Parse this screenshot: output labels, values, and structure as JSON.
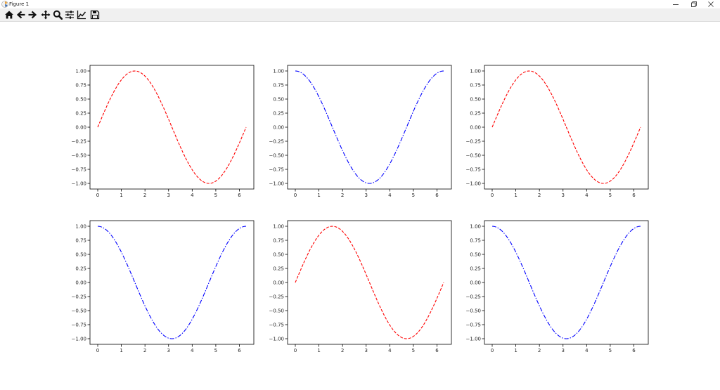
{
  "window": {
    "title": "Figure 1",
    "controls": [
      "minimize",
      "restore",
      "close"
    ]
  },
  "toolbar": {
    "buttons": [
      {
        "name": "home",
        "icon": "home-icon"
      },
      {
        "name": "back",
        "icon": "arrow-left-icon"
      },
      {
        "name": "forward",
        "icon": "arrow-right-icon"
      },
      {
        "name": "pan",
        "icon": "move-icon"
      },
      {
        "name": "zoom",
        "icon": "magnifier-icon"
      },
      {
        "name": "configure-subplots",
        "icon": "sliders-icon"
      },
      {
        "name": "edit-axes",
        "icon": "line-chart-icon"
      },
      {
        "name": "save",
        "icon": "floppy-disk-icon"
      }
    ]
  },
  "colors": {
    "sin": "#ff0000",
    "cos": "#0000ff",
    "toolbar_bg": "#f0f0f0"
  },
  "chart_data": [
    {
      "type": "line",
      "row": 1,
      "col": 1,
      "function": "sin",
      "x_range": [
        0,
        6.283
      ],
      "ylim": [
        -1.1,
        1.1
      ],
      "xticks": [
        "0",
        "1",
        "2",
        "3",
        "4",
        "5",
        "6"
      ],
      "yticks": [
        "1.00",
        "0.75",
        "0.50",
        "0.25",
        "0.00",
        "−0.25",
        "−0.50",
        "−0.75",
        "−1.00"
      ],
      "series": [
        {
          "color": "#ff0000",
          "linestyle": "dashed"
        }
      ]
    },
    {
      "type": "line",
      "row": 1,
      "col": 2,
      "function": "cos",
      "x_range": [
        0,
        6.283
      ],
      "ylim": [
        -1.1,
        1.1
      ],
      "xticks": [
        "0",
        "1",
        "2",
        "3",
        "4",
        "5",
        "6"
      ],
      "yticks": [
        "1.00",
        "0.75",
        "0.50",
        "0.25",
        "0.00",
        "−0.25",
        "−0.50",
        "−0.75",
        "−1.00"
      ],
      "series": [
        {
          "color": "#0000ff",
          "linestyle": "dashdot"
        }
      ]
    },
    {
      "type": "line",
      "row": 1,
      "col": 3,
      "function": "sin",
      "x_range": [
        0,
        6.283
      ],
      "ylim": [
        -1.1,
        1.1
      ],
      "xticks": [
        "0",
        "1",
        "2",
        "3",
        "4",
        "5",
        "6"
      ],
      "yticks": [
        "1.00",
        "0.75",
        "0.50",
        "0.25",
        "0.00",
        "−0.25",
        "−0.50",
        "−0.75",
        "−1.00"
      ],
      "series": [
        {
          "color": "#ff0000",
          "linestyle": "dashed"
        }
      ]
    },
    {
      "type": "line",
      "row": 2,
      "col": 1,
      "function": "cos",
      "x_range": [
        0,
        6.283
      ],
      "ylim": [
        -1.1,
        1.1
      ],
      "xticks": [
        "0",
        "1",
        "2",
        "3",
        "4",
        "5",
        "6"
      ],
      "yticks": [
        "1.00",
        "0.75",
        "0.50",
        "0.25",
        "0.00",
        "−0.25",
        "−0.50",
        "−0.75",
        "−1.00"
      ],
      "series": [
        {
          "color": "#0000ff",
          "linestyle": "dashdot"
        }
      ]
    },
    {
      "type": "line",
      "row": 2,
      "col": 2,
      "function": "sin",
      "x_range": [
        0,
        6.283
      ],
      "ylim": [
        -1.1,
        1.1
      ],
      "xticks": [
        "0",
        "1",
        "2",
        "3",
        "4",
        "5",
        "6"
      ],
      "yticks": [
        "1.00",
        "0.75",
        "0.50",
        "0.25",
        "0.00",
        "−0.25",
        "−0.50",
        "−0.75",
        "−1.00"
      ],
      "series": [
        {
          "color": "#ff0000",
          "linestyle": "dashed"
        }
      ]
    },
    {
      "type": "line",
      "row": 2,
      "col": 3,
      "function": "cos",
      "x_range": [
        0,
        6.283
      ],
      "ylim": [
        -1.1,
        1.1
      ],
      "xticks": [
        "0",
        "1",
        "2",
        "3",
        "4",
        "5",
        "6"
      ],
      "yticks": [
        "1.00",
        "0.75",
        "0.50",
        "0.25",
        "0.00",
        "−0.25",
        "−0.50",
        "−0.75",
        "−1.00"
      ],
      "series": [
        {
          "color": "#0000ff",
          "linestyle": "dashdot"
        }
      ]
    }
  ]
}
